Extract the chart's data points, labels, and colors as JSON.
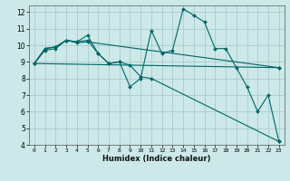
{
  "title": "",
  "xlabel": "Humidex (Indice chaleur)",
  "ylabel": "",
  "bg_color": "#cce8e8",
  "grid_color": "#aacccc",
  "line_color": "#006666",
  "xlim": [
    -0.5,
    23.5
  ],
  "ylim": [
    4,
    12.4
  ],
  "yticks": [
    4,
    5,
    6,
    7,
    8,
    9,
    10,
    11,
    12
  ],
  "xticks": [
    0,
    1,
    2,
    3,
    4,
    5,
    6,
    7,
    8,
    9,
    10,
    11,
    12,
    13,
    14,
    15,
    16,
    17,
    18,
    19,
    20,
    21,
    22,
    23
  ],
  "series": [
    {
      "x": [
        0,
        1,
        2,
        3,
        4,
        5,
        6,
        7,
        8,
        9,
        10,
        11,
        12,
        13,
        14,
        15,
        16,
        17,
        18,
        19,
        20,
        21,
        22,
        23
      ],
      "y": [
        8.9,
        9.8,
        9.9,
        10.3,
        10.2,
        10.6,
        9.5,
        8.9,
        9.0,
        7.5,
        8.0,
        10.9,
        9.5,
        9.7,
        12.2,
        11.8,
        11.4,
        9.8,
        9.8,
        8.65,
        7.5,
        6.0,
        7.0,
        4.2
      ]
    },
    {
      "x": [
        0,
        1,
        2,
        3,
        4,
        5,
        6,
        7,
        8,
        9,
        10,
        11,
        23
      ],
      "y": [
        8.9,
        9.8,
        9.9,
        10.3,
        10.2,
        10.3,
        9.5,
        8.9,
        9.0,
        8.8,
        8.1,
        8.0,
        4.2
      ]
    },
    {
      "x": [
        0,
        1,
        2,
        3,
        4,
        5,
        23
      ],
      "y": [
        8.9,
        9.7,
        9.8,
        10.3,
        10.15,
        10.2,
        8.65
      ]
    },
    {
      "x": [
        0,
        23
      ],
      "y": [
        8.9,
        8.65
      ]
    }
  ]
}
